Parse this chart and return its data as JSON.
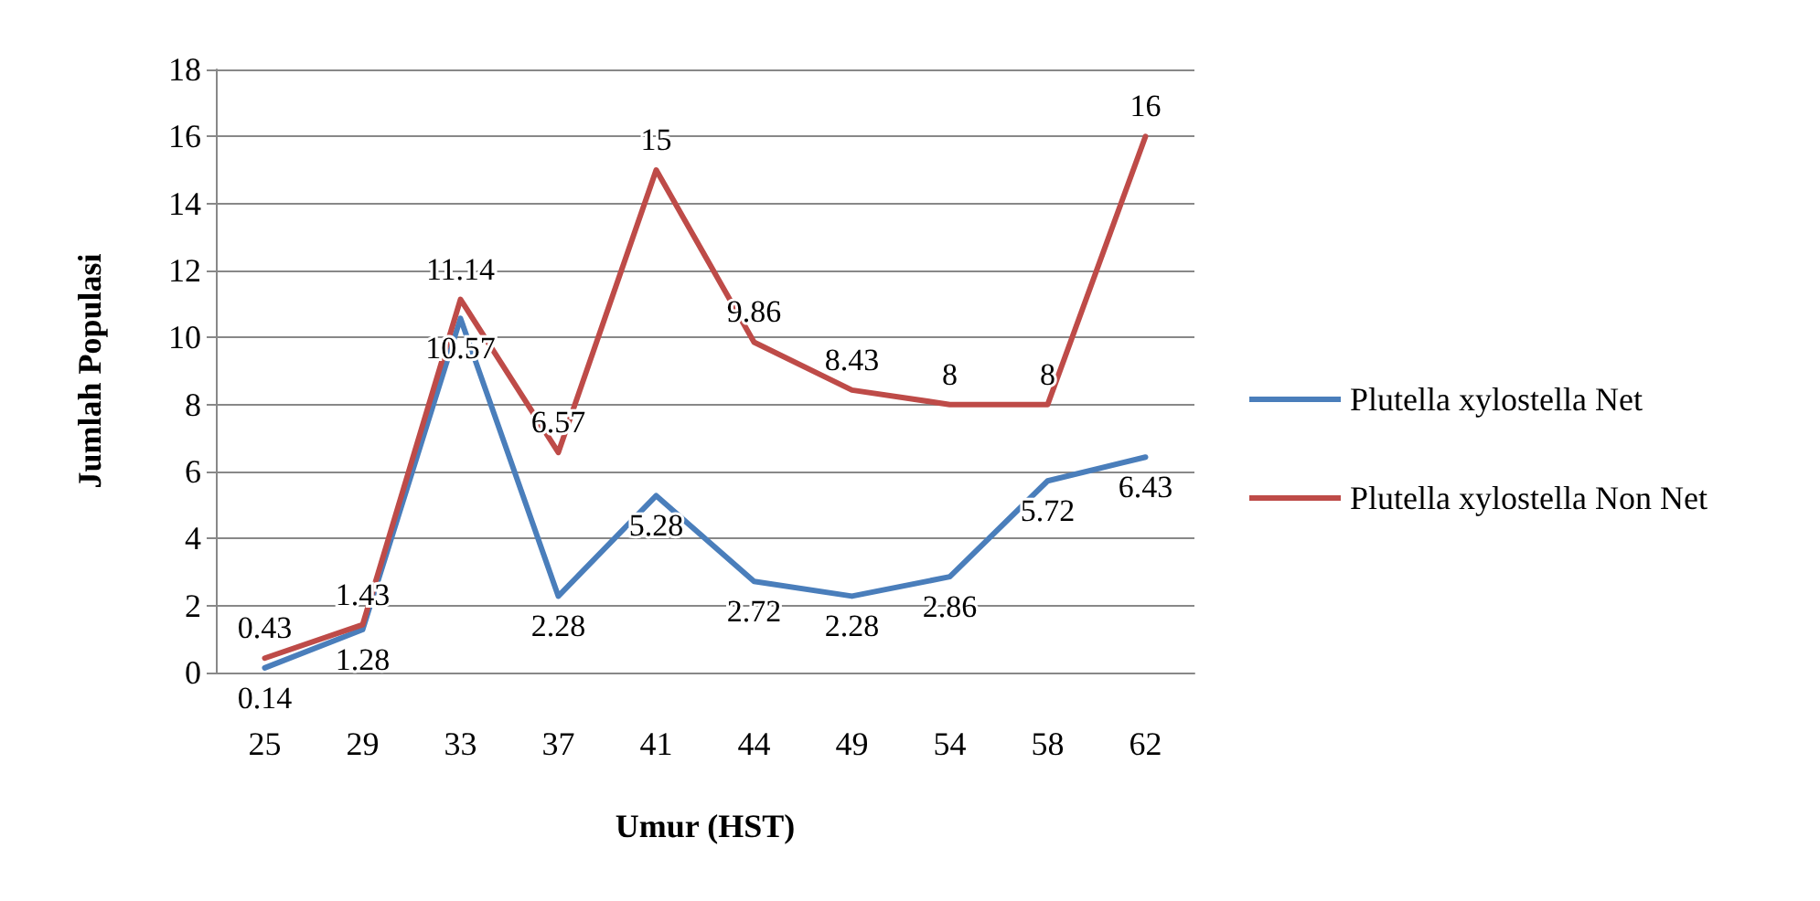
{
  "chart_data": {
    "type": "line",
    "xlabel": "Umur (HST)",
    "ylabel": "Jumlah Populasi",
    "categories": [
      "25",
      "29",
      "33",
      "37",
      "41",
      "44",
      "49",
      "54",
      "58",
      "62"
    ],
    "series": [
      {
        "name": "Plutella xylostella Net",
        "color": "#4a7ebb",
        "values": [
          0.14,
          1.28,
          10.57,
          2.28,
          5.28,
          2.72,
          2.28,
          2.86,
          5.72,
          6.43
        ]
      },
      {
        "name": "Plutella xylostella Non Net",
        "color": "#be4b48",
        "values": [
          0.43,
          1.43,
          11.14,
          6.57,
          15,
          9.86,
          8.43,
          8,
          8,
          16
        ]
      }
    ],
    "ylim": [
      0,
      18
    ],
    "yticks": [
      0,
      2,
      4,
      6,
      8,
      10,
      12,
      14,
      16,
      18
    ],
    "grid": "y",
    "legend": "right",
    "marker": "none",
    "line_style": "solid",
    "data_labels": true
  }
}
